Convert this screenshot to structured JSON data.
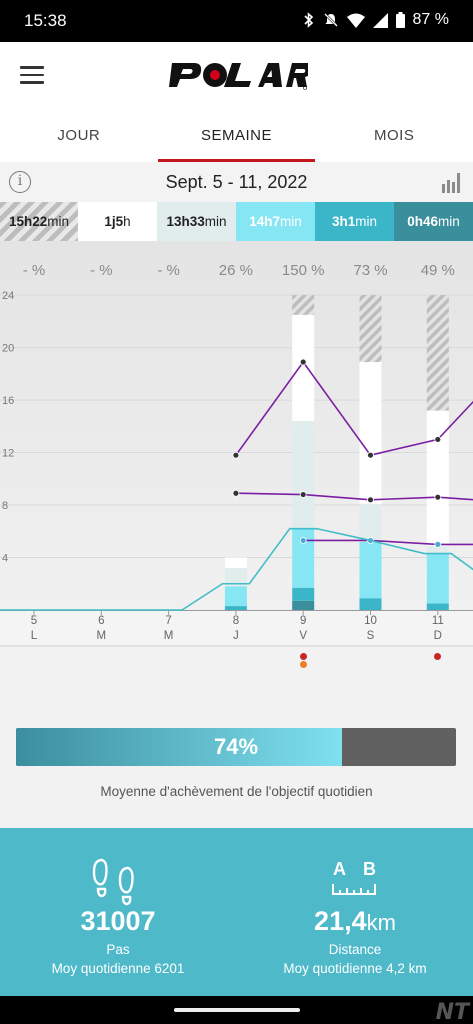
{
  "status_bar": {
    "time": "15:38",
    "battery": "87 %"
  },
  "app": {
    "logo_text": "POLAR"
  },
  "tabs": [
    {
      "label": "JOUR",
      "active": false
    },
    {
      "label": "SEMAINE",
      "active": true
    },
    {
      "label": "MOIS",
      "active": false
    }
  ],
  "period": {
    "date_range": "Sept. 5 - 11, 2022"
  },
  "durations": [
    {
      "value": "15h22",
      "unit": "min"
    },
    {
      "value": "1j5",
      "unit": "h"
    },
    {
      "value": "13h33",
      "unit": "min"
    },
    {
      "value": "14h7",
      "unit": "min"
    },
    {
      "value": "3h1",
      "unit": "min"
    },
    {
      "value": "0h46",
      "unit": "min"
    }
  ],
  "chart_data": {
    "type": "bar",
    "percent_labels": [
      "- %",
      "- %",
      "- %",
      "26 %",
      "150 %",
      "73 %",
      "49 %"
    ],
    "y_ticks": [
      24,
      20,
      16,
      12,
      8,
      4
    ],
    "ylim": [
      0,
      24
    ],
    "days": [
      {
        "num": "5",
        "letter": "L"
      },
      {
        "num": "6",
        "letter": "M"
      },
      {
        "num": "7",
        "letter": "M"
      },
      {
        "num": "8",
        "letter": "J"
      },
      {
        "num": "9",
        "letter": "V"
      },
      {
        "num": "10",
        "letter": "S"
      },
      {
        "num": "11",
        "letter": "D"
      }
    ],
    "stacked_bars": [
      {
        "day": "8",
        "segments": [
          {
            "h": 0.3,
            "c": "#3bb6c9"
          },
          {
            "h": 1.5,
            "c": "#86e6f4"
          },
          {
            "h": 1.4,
            "c": "#e1ecec"
          },
          {
            "h": 0.8,
            "c": "#ffffff"
          }
        ]
      },
      {
        "day": "9",
        "segments": [
          {
            "h": 0.7,
            "c": "#3a8f9c"
          },
          {
            "h": 1.0,
            "c": "#3bb6c9"
          },
          {
            "h": 4.5,
            "c": "#86e6f4"
          },
          {
            "h": 8.2,
            "c": "#e1ecec"
          },
          {
            "h": 8.1,
            "c": "#ffffff"
          },
          {
            "h": 1.5,
            "c": "hatch"
          }
        ]
      },
      {
        "day": "10",
        "segments": [
          {
            "h": 0.9,
            "c": "#3bb6c9"
          },
          {
            "h": 4.3,
            "c": "#86e6f4"
          },
          {
            "h": 2.9,
            "c": "#e1ecec"
          },
          {
            "h": 10.8,
            "c": "#ffffff"
          },
          {
            "h": 5.1,
            "c": "hatch"
          }
        ]
      },
      {
        "day": "11",
        "segments": [
          {
            "h": 0.5,
            "c": "#3bb6c9"
          },
          {
            "h": 3.8,
            "c": "#86e6f4"
          },
          {
            "h": 0.6,
            "c": "#e1ecec"
          },
          {
            "h": 10.3,
            "c": "#ffffff"
          },
          {
            "h": 8.8,
            "c": "hatch"
          }
        ]
      }
    ],
    "series": [
      {
        "color": "#7b1fa2",
        "marker": "#333333",
        "points": [
          [
            3,
            11.8
          ],
          [
            4,
            18.9
          ],
          [
            5,
            11.8
          ],
          [
            6,
            13.0
          ],
          [
            6.55,
            16.0
          ]
        ]
      },
      {
        "color": "#7b1fa2",
        "marker": "#333333",
        "points": [
          [
            3,
            8.9
          ],
          [
            4,
            8.8
          ],
          [
            5,
            8.4
          ],
          [
            6,
            8.6
          ],
          [
            6.55,
            8.4
          ]
        ]
      },
      {
        "color": "#7b1fa2",
        "marker": "#4aa9d6",
        "points": [
          [
            4,
            5.3
          ],
          [
            5,
            5.3
          ],
          [
            6,
            5.0
          ],
          [
            6.55,
            5.0
          ]
        ]
      },
      {
        "color": "#42bcc8",
        "marker": null,
        "points": [
          [
            -0.6,
            0
          ],
          [
            2.2,
            0
          ],
          [
            2.8,
            2.0
          ],
          [
            3.2,
            2.0
          ],
          [
            3.8,
            6.2
          ],
          [
            4.2,
            6.2
          ],
          [
            5,
            5.3
          ],
          [
            5.8,
            4.3
          ],
          [
            6.2,
            4.3
          ],
          [
            6.55,
            3.0
          ]
        ]
      }
    ],
    "markers": [
      {
        "day": "9",
        "colors": [
          "#c62828",
          "#ef7d29"
        ]
      },
      {
        "day": "11",
        "colors": [
          "#c62828"
        ]
      }
    ]
  },
  "goal": {
    "percent_text": "74%",
    "fraction": 0.74,
    "caption": "Moyenne d'achèvement de l'objectif quotidien"
  },
  "stats": {
    "steps": {
      "value": "31007",
      "label": "Pas",
      "avg": "Moy quotidienne 6201"
    },
    "distance": {
      "value": "21,4",
      "unit": "km",
      "label": "Distance",
      "avg": "Moy quotidienne 4,2 km",
      "icon_letters": [
        "A",
        "B"
      ]
    }
  }
}
